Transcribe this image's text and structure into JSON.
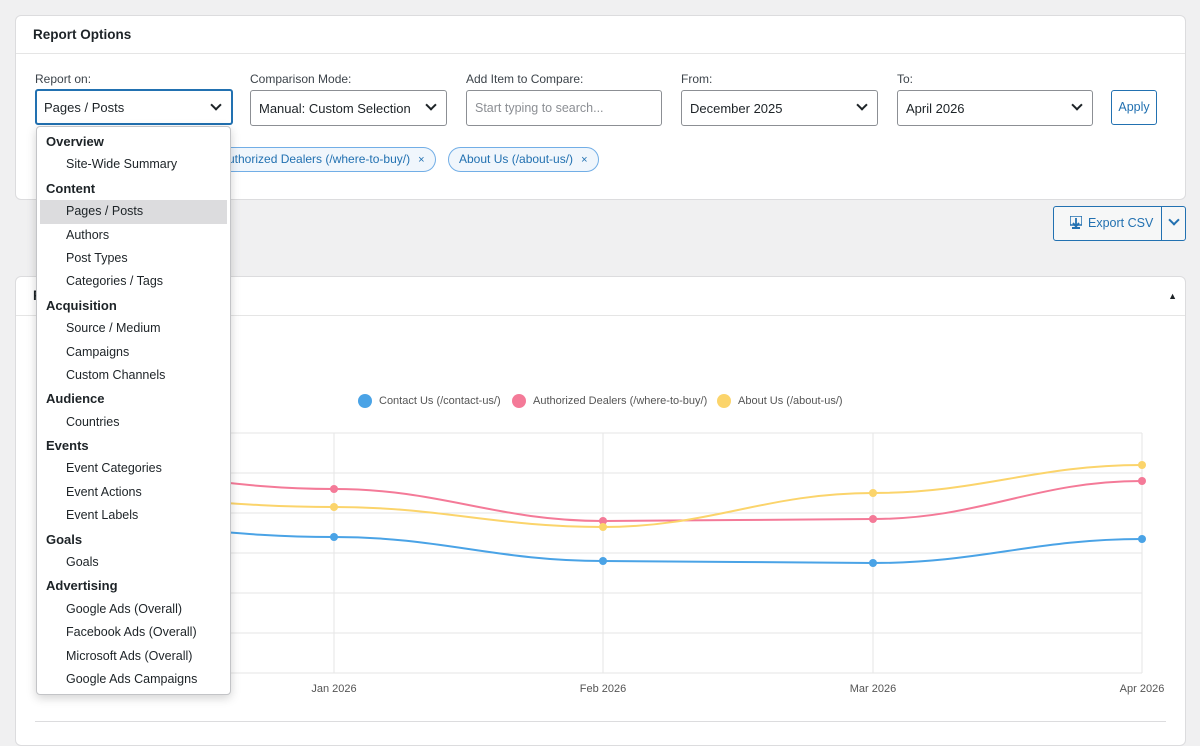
{
  "panel": {
    "title": "Report Options"
  },
  "fields": {
    "report_on": {
      "label": "Report on:",
      "value": "Pages / Posts"
    },
    "comparison": {
      "label": "Comparison Mode:",
      "value": "Manual: Custom Selection"
    },
    "add_item": {
      "label": "Add Item to Compare:",
      "placeholder": "Start typing to search..."
    },
    "from": {
      "label": "From:",
      "value": "December 2025"
    },
    "to": {
      "label": "To:",
      "value": "April 2026"
    },
    "apply_label": "Apply"
  },
  "chips": [
    {
      "label": "uthorized Dealers (/where-to-buy/)",
      "remove": "×"
    },
    {
      "label": "About Us (/about-us/)",
      "remove": "×"
    }
  ],
  "export": {
    "label": "Export CSV",
    "icon": "download-icon"
  },
  "chart_panel": {
    "collapse_icon": "▲",
    "title_initial": "F"
  },
  "dropdown": {
    "groups": [
      {
        "label": "Overview",
        "items": [
          "Site-Wide Summary"
        ]
      },
      {
        "label": "Content",
        "items": [
          "Pages / Posts",
          "Authors",
          "Post Types",
          "Categories / Tags"
        ]
      },
      {
        "label": "Acquisition",
        "items": [
          "Source / Medium",
          "Campaigns",
          "Custom Channels"
        ]
      },
      {
        "label": "Audience",
        "items": [
          "Countries"
        ]
      },
      {
        "label": "Events",
        "items": [
          "Event Categories",
          "Event Actions",
          "Event Labels"
        ]
      },
      {
        "label": "Goals",
        "items": [
          "Goals"
        ]
      },
      {
        "label": "Advertising",
        "items": [
          "Google Ads (Overall)",
          "Facebook Ads (Overall)",
          "Microsoft Ads (Overall)",
          "Google Ads Campaigns"
        ]
      }
    ],
    "selected": "Pages / Posts"
  },
  "colors": {
    "accent": "#2271b1",
    "contact": "#4aa3e6",
    "dealers": "#f47a98",
    "about": "#fbd46b"
  },
  "chart_data": {
    "type": "line",
    "x": [
      "Jan 2026",
      "Feb 2026",
      "Mar 2026",
      "Apr 2026"
    ],
    "series": [
      {
        "name": "Contact Us (/contact-us/)",
        "color": "#4aa3e6",
        "values": [
          34,
          28,
          27.5,
          33.5
        ]
      },
      {
        "name": "Authorized Dealers (/where-to-buy/)",
        "color": "#f47a98",
        "values": [
          46,
          38,
          38.5,
          48
        ]
      },
      {
        "name": "About Us (/about-us/)",
        "color": "#fbd46b",
        "values": [
          41.5,
          36.5,
          45,
          52
        ]
      }
    ],
    "ylim": [
      0,
      60
    ],
    "grid": true,
    "legend_position": "top"
  }
}
